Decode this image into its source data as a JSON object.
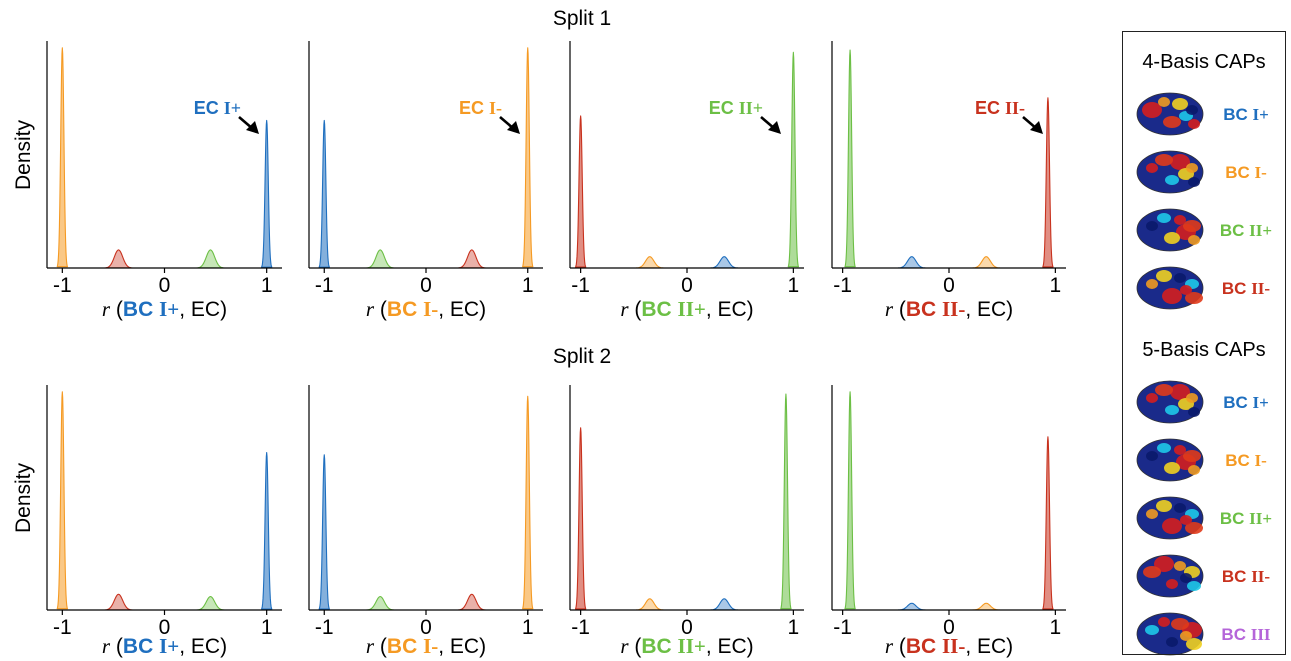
{
  "colors": {
    "BC I+": "#1f6fbf",
    "BC I-": "#f59a23",
    "BC II+": "#6cbf45",
    "BC II-": "#c8321e",
    "BC III": "#b565d9"
  },
  "figure": {
    "ylabel": "Density",
    "splits": [
      {
        "title": "Split 1",
        "panels": [
          {
            "label_pre": "r (",
            "label_bc": "BC I+",
            "label_post": ", EC)",
            "annotation": "EC I+",
            "annotation_color": "#1f6fbf"
          },
          {
            "label_pre": "r (",
            "label_bc": "BC I-",
            "label_post": ", EC)",
            "annotation": "EC I-",
            "annotation_color": "#f59a23"
          },
          {
            "label_pre": "r (",
            "label_bc": "BC II+",
            "label_post": ", EC)",
            "annotation": "EC II+",
            "annotation_color": "#6cbf45"
          },
          {
            "label_pre": "r (",
            "label_bc": "BC II-",
            "label_post": ", EC)",
            "annotation": "EC II-",
            "annotation_color": "#c8321e"
          }
        ]
      },
      {
        "title": "Split 2",
        "panels": [
          {
            "label_pre": "r (",
            "label_bc": "BC I+",
            "label_post": ", EC)",
            "annotation": "",
            "annotation_color": ""
          },
          {
            "label_pre": "r (",
            "label_bc": "BC I-",
            "label_post": ", EC)",
            "annotation": "",
            "annotation_color": ""
          },
          {
            "label_pre": "r (",
            "label_bc": "BC II+",
            "label_post": ", EC)",
            "annotation": "",
            "annotation_color": ""
          },
          {
            "label_pre": "r (",
            "label_bc": "BC II-",
            "label_post": ", EC)",
            "annotation": "",
            "annotation_color": ""
          }
        ]
      }
    ]
  },
  "legend": {
    "sections": [
      {
        "title": "4-Basis CAPs",
        "items": [
          "BC I+",
          "BC I-",
          "BC II+",
          "BC II-"
        ]
      },
      {
        "title": "5-Basis CAPs",
        "items": [
          "BC I+",
          "BC I-",
          "BC II+",
          "BC II-",
          "BC III"
        ]
      }
    ]
  },
  "chart_data": [
    {
      "type": "area",
      "split": "Split 1",
      "xlabel": "r (BC I+, EC)",
      "ylabel": "Density",
      "xlim": [
        -1.15,
        1.15
      ],
      "xticks": [
        -1,
        0,
        1
      ],
      "series": [
        {
          "name": "BC I-",
          "peak_r": -1.0,
          "rel_height": 0.97,
          "kind": "spike"
        },
        {
          "name": "BC II-",
          "peak_r": -0.45,
          "rel_height": 0.08,
          "kind": "bump"
        },
        {
          "name": "BC II+",
          "peak_r": 0.45,
          "rel_height": 0.08,
          "kind": "bump"
        },
        {
          "name": "BC I+",
          "peak_r": 1.0,
          "rel_height": 0.65,
          "kind": "spike"
        }
      ]
    },
    {
      "type": "area",
      "split": "Split 1",
      "xlabel": "r (BC I-, EC)",
      "ylabel": "Density",
      "xlim": [
        -1.15,
        1.15
      ],
      "xticks": [
        -1,
        0,
        1
      ],
      "series": [
        {
          "name": "BC I+",
          "peak_r": -1.0,
          "rel_height": 0.65,
          "kind": "spike"
        },
        {
          "name": "BC II+",
          "peak_r": -0.45,
          "rel_height": 0.08,
          "kind": "bump"
        },
        {
          "name": "BC II-",
          "peak_r": 0.45,
          "rel_height": 0.08,
          "kind": "bump"
        },
        {
          "name": "BC I-",
          "peak_r": 1.0,
          "rel_height": 0.97,
          "kind": "spike"
        }
      ]
    },
    {
      "type": "area",
      "split": "Split 1",
      "xlabel": "r (BC II+, EC)",
      "ylabel": "Density",
      "xlim": [
        -1.1,
        1.1
      ],
      "xticks": [
        -1,
        0,
        1
      ],
      "series": [
        {
          "name": "BC II-",
          "peak_r": -1.0,
          "rel_height": 0.67,
          "kind": "spike"
        },
        {
          "name": "BC I-",
          "peak_r": -0.35,
          "rel_height": 0.05,
          "kind": "bump"
        },
        {
          "name": "BC I+",
          "peak_r": 0.35,
          "rel_height": 0.05,
          "kind": "bump"
        },
        {
          "name": "BC II+",
          "peak_r": 1.0,
          "rel_height": 0.95,
          "kind": "spike"
        }
      ]
    },
    {
      "type": "area",
      "split": "Split 1",
      "xlabel": "r (BC II-, EC)",
      "ylabel": "Density",
      "xlim": [
        -1.1,
        1.1
      ],
      "xticks": [
        -1,
        0,
        1
      ],
      "series": [
        {
          "name": "BC II+",
          "peak_r": -0.93,
          "rel_height": 0.96,
          "kind": "spike"
        },
        {
          "name": "BC I+",
          "peak_r": -0.35,
          "rel_height": 0.05,
          "kind": "bump"
        },
        {
          "name": "BC I-",
          "peak_r": 0.35,
          "rel_height": 0.05,
          "kind": "bump"
        },
        {
          "name": "BC II-",
          "peak_r": 0.93,
          "rel_height": 0.75,
          "kind": "spike"
        }
      ]
    },
    {
      "type": "area",
      "split": "Split 2",
      "xlabel": "r (BC I+, EC)",
      "ylabel": "Density",
      "xlim": [
        -1.15,
        1.15
      ],
      "xticks": [
        -1,
        0,
        1
      ],
      "series": [
        {
          "name": "BC I-",
          "peak_r": -1.0,
          "rel_height": 0.97,
          "kind": "spike"
        },
        {
          "name": "BC II-",
          "peak_r": -0.45,
          "rel_height": 0.07,
          "kind": "bump"
        },
        {
          "name": "BC II+",
          "peak_r": 0.45,
          "rel_height": 0.06,
          "kind": "bump"
        },
        {
          "name": "BC I+",
          "peak_r": 1.0,
          "rel_height": 0.7,
          "kind": "spike"
        }
      ]
    },
    {
      "type": "area",
      "split": "Split 2",
      "xlabel": "r (BC I-, EC)",
      "ylabel": "Density",
      "xlim": [
        -1.15,
        1.15
      ],
      "xticks": [
        -1,
        0,
        1
      ],
      "series": [
        {
          "name": "BC I+",
          "peak_r": -1.0,
          "rel_height": 0.69,
          "kind": "spike"
        },
        {
          "name": "BC II+",
          "peak_r": -0.45,
          "rel_height": 0.06,
          "kind": "bump"
        },
        {
          "name": "BC II-",
          "peak_r": 0.45,
          "rel_height": 0.07,
          "kind": "bump"
        },
        {
          "name": "BC I-",
          "peak_r": 1.0,
          "rel_height": 0.95,
          "kind": "spike"
        }
      ]
    },
    {
      "type": "area",
      "split": "Split 2",
      "xlabel": "r (BC II+, EC)",
      "ylabel": "Density",
      "xlim": [
        -1.1,
        1.1
      ],
      "xticks": [
        -1,
        0,
        1
      ],
      "series": [
        {
          "name": "BC II-",
          "peak_r": -1.0,
          "rel_height": 0.81,
          "kind": "spike"
        },
        {
          "name": "BC I-",
          "peak_r": -0.35,
          "rel_height": 0.05,
          "kind": "bump"
        },
        {
          "name": "BC I+",
          "peak_r": 0.35,
          "rel_height": 0.05,
          "kind": "bump"
        },
        {
          "name": "BC II+",
          "peak_r": 0.93,
          "rel_height": 0.96,
          "kind": "spike"
        }
      ]
    },
    {
      "type": "area",
      "split": "Split 2",
      "xlabel": "r (BC II-, EC)",
      "ylabel": "Density",
      "xlim": [
        -1.1,
        1.1
      ],
      "xticks": [
        -1,
        0,
        1
      ],
      "series": [
        {
          "name": "BC II+",
          "peak_r": -0.93,
          "rel_height": 0.97,
          "kind": "spike"
        },
        {
          "name": "BC I+",
          "peak_r": -0.35,
          "rel_height": 0.03,
          "kind": "bump"
        },
        {
          "name": "BC I-",
          "peak_r": 0.35,
          "rel_height": 0.03,
          "kind": "bump"
        },
        {
          "name": "BC II-",
          "peak_r": 0.93,
          "rel_height": 0.77,
          "kind": "spike"
        }
      ]
    }
  ]
}
